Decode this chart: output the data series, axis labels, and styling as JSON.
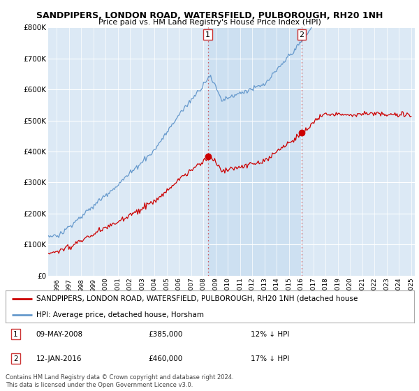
{
  "title": "SANDPIPERS, LONDON ROAD, WATERSFIELD, PULBOROUGH, RH20 1NH",
  "subtitle": "Price paid vs. HM Land Registry's House Price Index (HPI)",
  "ylabel_ticks": [
    "£0",
    "£100K",
    "£200K",
    "£300K",
    "£400K",
    "£500K",
    "£600K",
    "£700K",
    "£800K"
  ],
  "ylim": [
    0,
    800000
  ],
  "xlim_start": 1995.3,
  "xlim_end": 2025.3,
  "plot_bg_color": "#dce9f5",
  "shade_color": "#c8ddf0",
  "hpi_color": "#6699cc",
  "price_color": "#cc0000",
  "sale1_year": 2008.36,
  "sale1_price": 385000,
  "sale2_year": 2016.04,
  "sale2_price": 460000,
  "legend_label1": "SANDPIPERS, LONDON ROAD, WATERSFIELD, PULBOROUGH, RH20 1NH (detached house",
  "legend_label2": "HPI: Average price, detached house, Horsham",
  "annotation1_date": "09-MAY-2008",
  "annotation1_price": "£385,000",
  "annotation1_hpi": "12% ↓ HPI",
  "annotation2_date": "12-JAN-2016",
  "annotation2_price": "£460,000",
  "annotation2_hpi": "17% ↓ HPI",
  "footer": "Contains HM Land Registry data © Crown copyright and database right 2024.\nThis data is licensed under the Open Government Licence v3.0."
}
